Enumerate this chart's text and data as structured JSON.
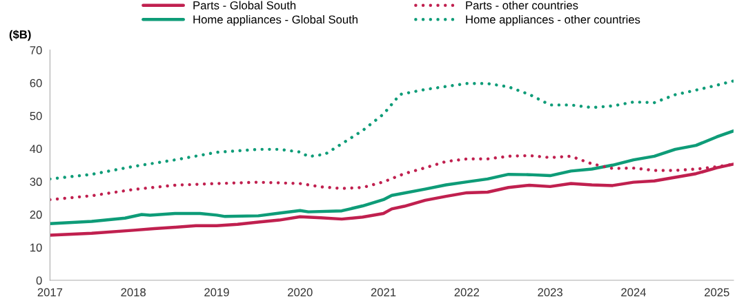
{
  "chart_data": {
    "type": "line",
    "ylabel": "($B)",
    "ylim": [
      0,
      70
    ],
    "yticks": [
      0,
      10,
      20,
      30,
      40,
      50,
      60,
      70
    ],
    "xlim": [
      2017,
      2025.2
    ],
    "xticks": [
      2017,
      2018,
      2019,
      2020,
      2021,
      2022,
      2023,
      2024,
      2025
    ],
    "grid": false,
    "legend": "top",
    "marker": "none",
    "series": [
      {
        "name": "Parts - Global South",
        "color": "#c0204f",
        "line_style": "solid",
        "x": [
          2017,
          2017.5,
          2018,
          2018.25,
          2018.5,
          2018.75,
          2019,
          2019.25,
          2019.5,
          2019.75,
          2020,
          2020.25,
          2020.5,
          2020.75,
          2021,
          2021.1,
          2021.25,
          2021.5,
          2021.75,
          2022,
          2022.25,
          2022.5,
          2022.75,
          2023,
          2023.25,
          2023.5,
          2023.75,
          2024,
          2024.25,
          2024.5,
          2024.75,
          2025,
          2025.2
        ],
        "values": [
          13.7,
          14.3,
          15.2,
          15.7,
          16.1,
          16.6,
          16.6,
          17.0,
          17.7,
          18.3,
          19.3,
          19.0,
          18.6,
          19.2,
          20.3,
          21.7,
          22.5,
          24.3,
          25.5,
          26.6,
          26.8,
          28.2,
          28.9,
          28.5,
          29.4,
          29.0,
          28.8,
          29.8,
          30.2,
          31.3,
          32.4,
          34.2,
          35.3
        ]
      },
      {
        "name": "Home appliances - Global South",
        "color": "#0e9c78",
        "line_style": "solid",
        "x": [
          2017,
          2017.5,
          2017.9,
          2018.1,
          2018.2,
          2018.5,
          2018.8,
          2019,
          2019.1,
          2019.5,
          2019.75,
          2020,
          2020.1,
          2020.5,
          2020.75,
          2021,
          2021.1,
          2021.5,
          2021.75,
          2022,
          2022.25,
          2022.5,
          2022.75,
          2023,
          2023.25,
          2023.5,
          2023.75,
          2024,
          2024.25,
          2024.5,
          2024.75,
          2025,
          2025.2
        ],
        "values": [
          17.2,
          17.9,
          18.9,
          20.0,
          19.8,
          20.3,
          20.3,
          19.8,
          19.4,
          19.6,
          20.4,
          21.2,
          20.8,
          21.1,
          22.6,
          24.5,
          25.8,
          27.7,
          29.0,
          29.9,
          30.8,
          32.2,
          32.1,
          31.8,
          33.2,
          33.8,
          35.0,
          36.6,
          37.7,
          39.8,
          41.0,
          43.6,
          45.4
        ]
      },
      {
        "name": "Parts - other countries",
        "color": "#c0204f",
        "line_style": "dotted",
        "x": [
          2017,
          2017.5,
          2018,
          2018.5,
          2019,
          2019.5,
          2020,
          2020.25,
          2020.5,
          2020.75,
          2021,
          2021.25,
          2021.5,
          2021.75,
          2022,
          2022.25,
          2022.5,
          2022.75,
          2023,
          2023.25,
          2023.5,
          2023.75,
          2024,
          2024.25,
          2024.5,
          2024.75,
          2025,
          2025.2
        ],
        "values": [
          24.5,
          25.7,
          27.6,
          28.9,
          29.4,
          29.8,
          29.4,
          28.4,
          27.9,
          28.2,
          29.9,
          32.4,
          34.2,
          36.1,
          36.9,
          36.9,
          37.7,
          37.9,
          37.3,
          37.7,
          35.4,
          34.0,
          34.1,
          33.4,
          33.4,
          33.8,
          34.5,
          35.3
        ]
      },
      {
        "name": "Home appliances - other countries",
        "color": "#0e9c78",
        "line_style": "dotted",
        "x": [
          2017,
          2017.5,
          2018,
          2018.5,
          2019,
          2019.5,
          2019.75,
          2020,
          2020.1,
          2020.3,
          2020.5,
          2020.75,
          2021,
          2021.2,
          2021.5,
          2021.75,
          2022,
          2022.25,
          2022.5,
          2022.75,
          2023,
          2023.25,
          2023.5,
          2023.75,
          2024,
          2024.25,
          2024.5,
          2024.75,
          2025,
          2025.2
        ],
        "values": [
          30.8,
          32.2,
          34.6,
          36.6,
          38.9,
          39.8,
          39.8,
          39.0,
          37.6,
          38.3,
          41.5,
          45.5,
          50.5,
          56.5,
          58.0,
          58.9,
          59.8,
          59.8,
          58.8,
          56.5,
          53.3,
          53.3,
          52.5,
          53.0,
          54.2,
          54.0,
          56.4,
          57.8,
          59.3,
          60.6
        ]
      }
    ]
  }
}
